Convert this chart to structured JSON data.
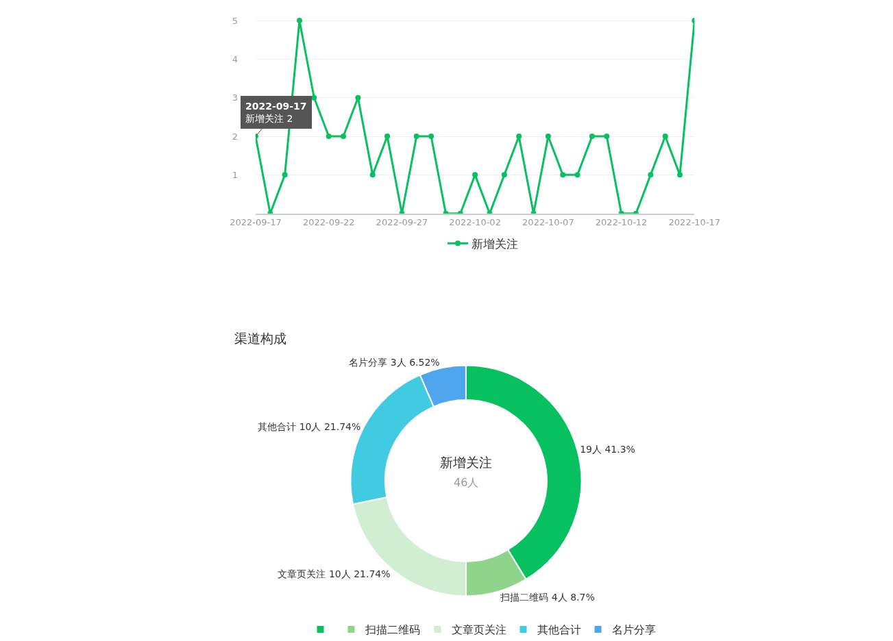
{
  "chart_data": [
    {
      "type": "line",
      "x": [
        "2022-09-17",
        "2022-09-18",
        "2022-09-19",
        "2022-09-20",
        "2022-09-21",
        "2022-09-22",
        "2022-09-23",
        "2022-09-24",
        "2022-09-25",
        "2022-09-26",
        "2022-09-27",
        "2022-09-28",
        "2022-09-29",
        "2022-09-30",
        "2022-10-01",
        "2022-10-02",
        "2022-10-03",
        "2022-10-04",
        "2022-10-05",
        "2022-10-06",
        "2022-10-07",
        "2022-10-08",
        "2022-10-09",
        "2022-10-10",
        "2022-10-11",
        "2022-10-12",
        "2022-10-13",
        "2022-10-14",
        "2022-10-15",
        "2022-10-16",
        "2022-10-17"
      ],
      "series": [
        {
          "name": "新增关注",
          "color": "#07c160",
          "values": [
            2,
            0,
            1,
            5,
            3,
            2,
            2,
            3,
            1,
            2,
            0,
            2,
            2,
            0,
            0,
            1,
            0,
            1,
            2,
            0,
            2,
            1,
            1,
            2,
            2,
            0,
            0,
            1,
            2,
            1,
            5
          ]
        }
      ],
      "xlim": [
        "2022-09-17",
        "2022-10-17"
      ],
      "xticks": [
        "2022-09-17",
        "2022-09-22",
        "2022-09-27",
        "2022-10-02",
        "2022-10-07",
        "2022-10-12",
        "2022-10-17"
      ],
      "ylim": [
        0,
        5.5
      ],
      "yticks": [
        {
          "value": 0,
          "label": null
        },
        1,
        2,
        3,
        4,
        5
      ],
      "grid": "y",
      "legend": "bottom",
      "marker": "circle",
      "line_style": "solid",
      "annotations": [
        {
          "text": "2022-09-17\n新增关注 2",
          "x": "2022-09-17",
          "y": 2
        }
      ]
    },
    {
      "type": "donut",
      "title": "渠道构成",
      "categories": [
        null,
        "扫描二维码",
        "文章页关注",
        "其他合计",
        "名片分享"
      ],
      "values": [
        19,
        4,
        10,
        10,
        3
      ],
      "colors": [
        "#07c160",
        "#8ed48b",
        "#d1eed2",
        "#40cbe0",
        "#4fa6ef"
      ],
      "value_labels": [
        "19人 41.3%",
        "4人 8.7%",
        "10人 21.74%",
        "10人 21.74%",
        "3人 6.52%"
      ],
      "legend": "bottom",
      "annotations": [
        "新增关注",
        "46人"
      ]
    }
  ]
}
